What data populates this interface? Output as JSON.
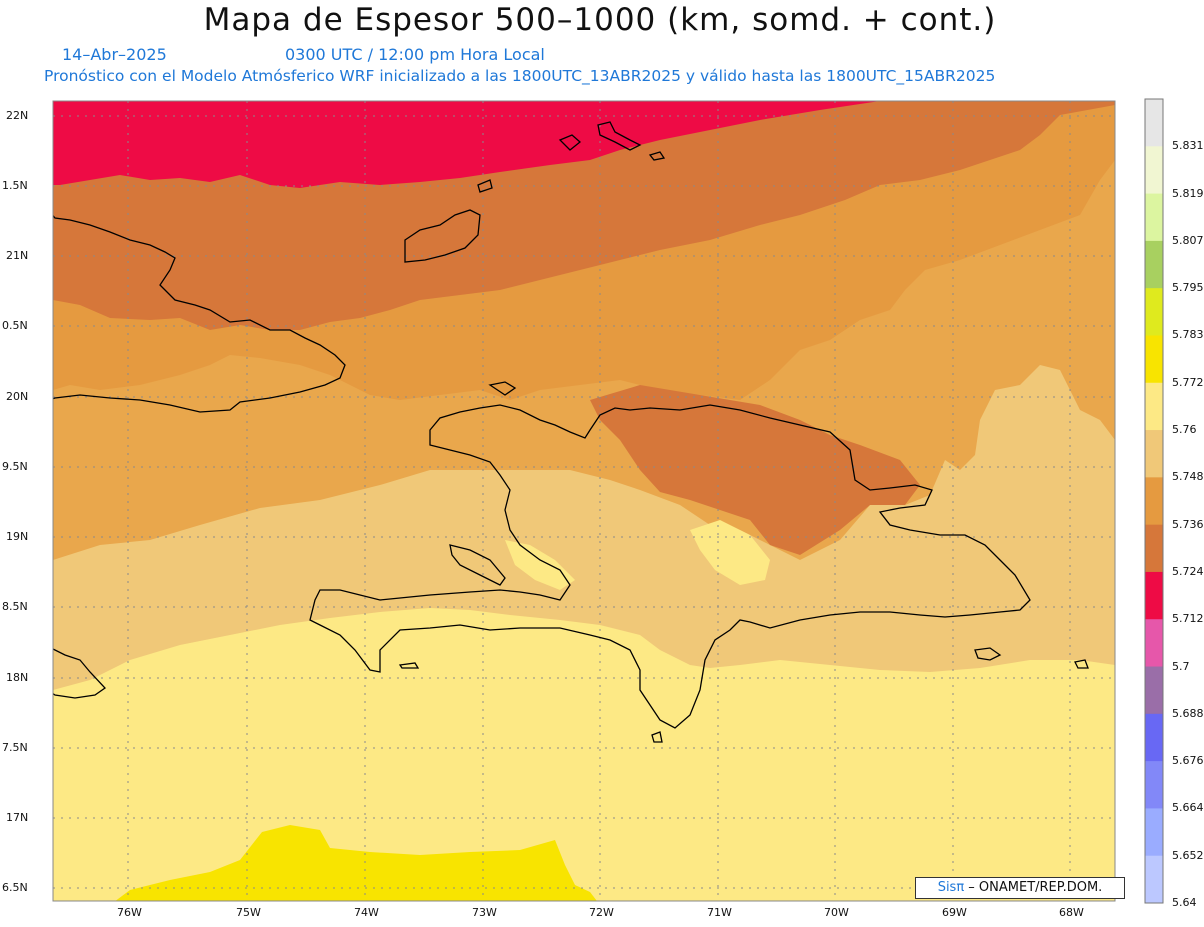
{
  "title": "Mapa de Espesor 500–1000 (km, somd. + cont.)",
  "date_text": "14–Abr–2025",
  "time_text": "0300 UTC / 12:00 pm Hora Local",
  "forecast_text": "Pronóstico con el Modelo Atmósferico WRF inicializado a las 1800UTC_13ABR2025 y válido hasta las  1800UTC_15ABR2025",
  "credit": {
    "prefix": "Sis",
    "pi": "π",
    "suffix": " – ONAMET/REP.DOM."
  },
  "lat_labels": [
    "22N",
    "1.5N",
    "21N",
    "0.5N",
    "20N",
    "9.5N",
    "19N",
    "8.5N",
    "18N",
    "7.5N",
    "17N",
    "6.5N"
  ],
  "lon_labels": [
    "76W",
    "75W",
    "74W",
    "73W",
    "72W",
    "71W",
    "70W",
    "69W",
    "68W"
  ],
  "colorbar": {
    "labels": [
      "5.831",
      "5.819",
      "5.807",
      "5.795",
      "5.783",
      "5.772",
      "5.76",
      "5.748",
      "5.736",
      "5.724",
      "5.712",
      "5.7",
      "5.688",
      "5.676",
      "5.664",
      "5.652",
      "5.64"
    ],
    "colors": [
      "#e6e6e6",
      "#f1f6d2",
      "#dcf5a0",
      "#a8d060",
      "#dfea1e",
      "#f8e400",
      "#fde985",
      "#f0c878",
      "#e59a40",
      "#d6773a",
      "#ee0b45",
      "#e657aa",
      "#9a6ea8",
      "#6868f4",
      "#8288f8",
      "#9aacff",
      "#bcc8ff"
    ]
  },
  "fields": {
    "red": "#ee0b45",
    "dark_orange": "#d6773a",
    "orange": "#e59a40",
    "light_orange": "#e9a74c",
    "tan": "#f0c878",
    "light_yellow": "#fde985",
    "yellow": "#f8e400"
  }
}
